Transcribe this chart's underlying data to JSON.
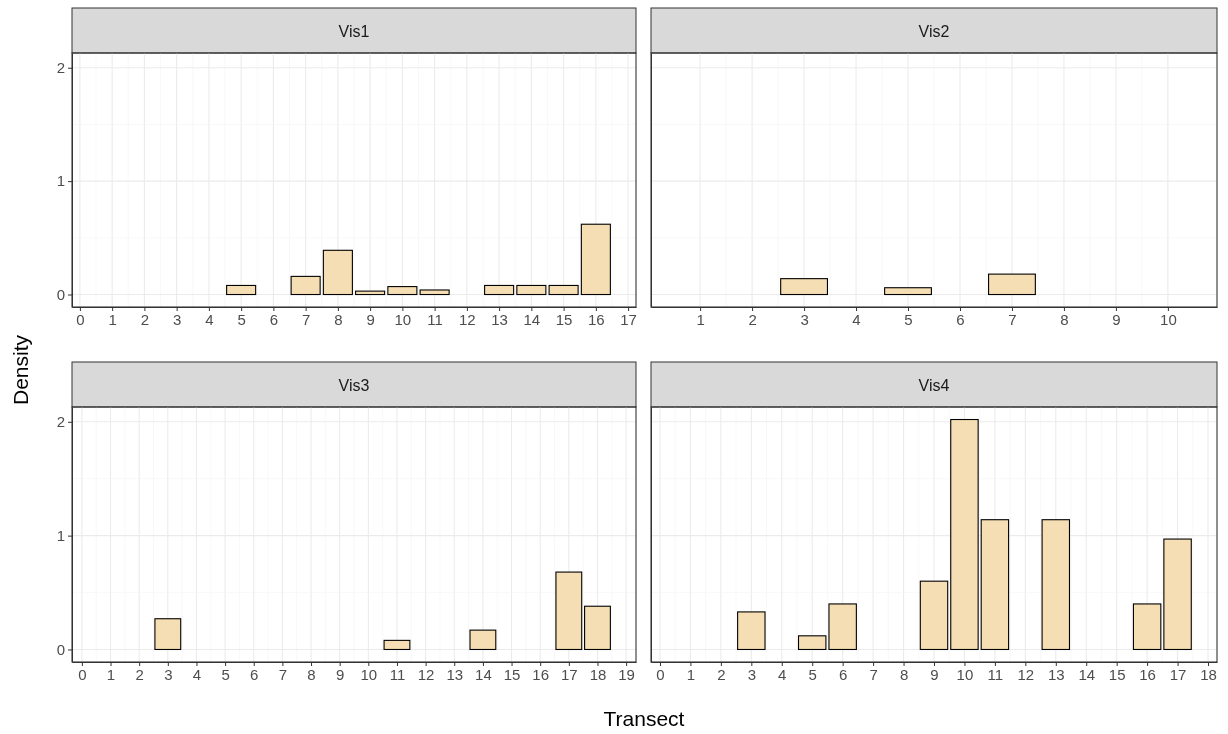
{
  "chart_data": [
    {
      "type": "bar",
      "title": "Vis1",
      "ylabel": "Density",
      "x": [
        1,
        2,
        3,
        4,
        5,
        6,
        7,
        8,
        9,
        10,
        11,
        12,
        13,
        14,
        15,
        16
      ],
      "values": [
        0,
        0,
        0,
        0,
        0.08,
        0,
        0.16,
        0.39,
        0.03,
        0.07,
        0.04,
        0,
        0.08,
        0.08,
        0.08,
        0.62
      ],
      "color": "#f5deb3",
      "xlim": [
        -0.245,
        17.245
      ],
      "xticks": [
        0,
        1,
        2,
        3,
        4,
        5,
        6,
        7,
        8,
        9,
        10,
        11,
        12,
        13,
        14,
        15,
        16,
        17
      ],
      "ylim": [
        -0.11,
        2.13
      ],
      "yticks": [
        0,
        1,
        2
      ],
      "grid": true
    },
    {
      "type": "bar",
      "title": "Vis2",
      "x": [
        1,
        2,
        3,
        4,
        5,
        6,
        7,
        8,
        9,
        10
      ],
      "values": [
        0,
        0,
        0.14,
        0,
        0.06,
        0,
        0.18,
        0,
        0,
        0
      ],
      "color": "#f5deb3",
      "xlim": [
        0.055,
        10.945
      ],
      "xticks": [
        1,
        2,
        3,
        4,
        5,
        6,
        7,
        8,
        9,
        10
      ],
      "ylim": [
        -0.11,
        2.13
      ],
      "yticks": [
        0,
        1,
        2
      ],
      "grid": true,
      "tick_labels": "x"
    },
    {
      "type": "bar",
      "title": "Vis3",
      "xlabel": "Transect",
      "x": [
        1,
        2,
        3,
        4,
        5,
        6,
        7,
        8,
        9,
        10,
        11,
        12,
        13,
        14,
        15,
        16,
        17,
        18
      ],
      "values": [
        0,
        0,
        0.27,
        0,
        0,
        0,
        0,
        0,
        0,
        0,
        0.08,
        0,
        0,
        0.17,
        0,
        0,
        0.68,
        0.38
      ],
      "color": "#f5deb3",
      "xlim": [
        -0.345,
        19.345
      ],
      "xticks": [
        0,
        1,
        2,
        3,
        4,
        5,
        6,
        7,
        8,
        9,
        10,
        11,
        12,
        13,
        14,
        15,
        16,
        17,
        18,
        19
      ],
      "ylim": [
        -0.11,
        2.13
      ],
      "yticks": [
        0,
        1,
        2
      ],
      "grid": true
    },
    {
      "type": "bar",
      "title": "Vis4",
      "x": [
        1,
        2,
        3,
        4,
        5,
        6,
        7,
        8,
        9,
        10,
        11,
        12,
        13,
        14,
        15,
        16,
        17
      ],
      "values": [
        0,
        0,
        0.33,
        0,
        0.12,
        0.4,
        0,
        0,
        0.6,
        2.02,
        1.14,
        0,
        1.14,
        0,
        0,
        0.4,
        0.97
      ],
      "color": "#f5deb3",
      "xlim": [
        -0.295,
        18.295
      ],
      "xticks": [
        0,
        1,
        2,
        3,
        4,
        5,
        6,
        7,
        8,
        9,
        10,
        11,
        12,
        13,
        14,
        15,
        16,
        17,
        18
      ],
      "ylim": [
        -0.11,
        2.13
      ],
      "yticks": [
        0,
        1,
        2
      ],
      "grid": true,
      "tick_labels": "x"
    }
  ]
}
